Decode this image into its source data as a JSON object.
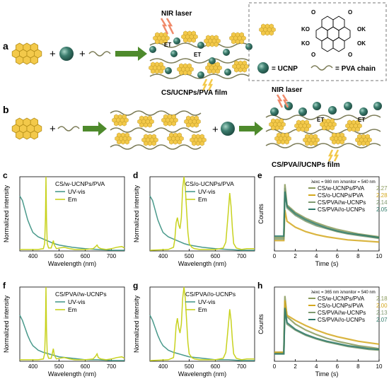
{
  "colors": {
    "uvvis": "#4a9a8c",
    "em": "#c8d21e",
    "s1": "#8a9a5b",
    "s2": "#d4a81e",
    "s3": "#7f9a70",
    "s4": "#2f7a6a",
    "cs": "#f3c94a",
    "csEdge": "#b58f1a",
    "ucnp": "#2e6b5e",
    "arrow": "#4e8a2c",
    "laser": "#f08a6a"
  },
  "schematic": {
    "panel_a": "a",
    "panel_b": "b",
    "nir_laser_a": "NIR laser",
    "nir_laser_b": "NIR laser",
    "et": "ET",
    "film_a": "CS/UCNPs/PVA film",
    "film_b": "CS/PVA//UCNPs film",
    "plus": "+",
    "legend_ucnp": "= UCNP",
    "legend_pva": "= PVA chain",
    "ko": "KO",
    "ok": "OK",
    "o": "O"
  },
  "chart_data": [
    {
      "panel": "c",
      "type": "line",
      "legend_title": "CS/w-UCNPs/PVA",
      "xlabel": "Wavelength (nm)",
      "ylabel": "Normalized intensity",
      "xlim": [
        350,
        750
      ],
      "xticks": [
        400,
        500,
        600,
        700
      ],
      "series": [
        {
          "name": "UV-vis",
          "color_key": "uvvis",
          "x": [
            350,
            360,
            370,
            380,
            390,
            400,
            410,
            420,
            440,
            460,
            480,
            500,
            550,
            600,
            650,
            700,
            750
          ],
          "y": [
            0.74,
            0.68,
            0.55,
            0.42,
            0.33,
            0.25,
            0.22,
            0.19,
            0.16,
            0.13,
            0.1,
            0.08,
            0.05,
            0.03,
            0.02,
            0.01,
            0.01
          ]
        },
        {
          "name": "Em",
          "color_key": "em",
          "x": [
            350,
            420,
            440,
            445,
            448,
            450,
            452,
            455,
            460,
            470,
            475,
            478,
            482,
            490,
            500,
            520,
            540,
            560,
            600,
            630,
            640,
            645,
            650,
            660,
            680,
            700,
            720,
            740,
            750
          ],
          "y": [
            0.02,
            0.02,
            0.03,
            0.1,
            0.45,
            1.0,
            0.45,
            0.1,
            0.04,
            0.04,
            0.1,
            0.14,
            0.08,
            0.03,
            0.04,
            0.05,
            0.03,
            0.02,
            0.02,
            0.03,
            0.06,
            0.08,
            0.05,
            0.03,
            0.02,
            0.03,
            0.05,
            0.06,
            0.04
          ]
        }
      ]
    },
    {
      "panel": "d",
      "type": "line",
      "legend_title": "CS/o-UCNPs/PVA",
      "xlabel": "Wavelength (nm)",
      "ylabel": "Normalized intensity",
      "xlim": [
        350,
        750
      ],
      "xticks": [
        400,
        500,
        600,
        700
      ],
      "series": [
        {
          "name": "UV-vis",
          "color_key": "uvvis",
          "x": [
            350,
            360,
            370,
            380,
            390,
            400,
            410,
            420,
            440,
            460,
            480,
            500,
            550,
            600,
            650,
            700,
            750
          ],
          "y": [
            0.74,
            0.68,
            0.55,
            0.42,
            0.33,
            0.25,
            0.22,
            0.19,
            0.16,
            0.13,
            0.1,
            0.08,
            0.05,
            0.03,
            0.02,
            0.01,
            0.01
          ]
        },
        {
          "name": "Em",
          "color_key": "em",
          "x": [
            350,
            420,
            440,
            445,
            450,
            455,
            460,
            465,
            470,
            475,
            480,
            485,
            490,
            495,
            500,
            510,
            520,
            540,
            560,
            600,
            630,
            640,
            650,
            655,
            660,
            665,
            670,
            680,
            700,
            720,
            750
          ],
          "y": [
            0.01,
            0.02,
            0.05,
            0.15,
            0.38,
            0.45,
            0.35,
            0.3,
            0.45,
            0.85,
            1.0,
            0.85,
            0.55,
            0.25,
            0.1,
            0.05,
            0.03,
            0.02,
            0.02,
            0.02,
            0.04,
            0.12,
            0.55,
            0.78,
            0.6,
            0.3,
            0.1,
            0.04,
            0.02,
            0.03,
            0.03
          ]
        }
      ]
    },
    {
      "panel": "e",
      "type": "line",
      "legend_note": "λexc = 980 nm  λmonitor = 540 nm",
      "xlabel": "Time (s)",
      "ylabel": "Counts",
      "xlim": [
        0,
        10
      ],
      "xticks": [
        0,
        2,
        4,
        6,
        8,
        10
      ],
      "series": [
        {
          "name": "CS/w-UCNPs/PVA",
          "lifetime": "2.27 s",
          "color_key": "s1",
          "x": [
            0,
            0.9,
            1.0,
            1.2,
            2,
            3,
            4,
            5,
            6,
            7,
            8,
            9,
            10
          ],
          "y": [
            0.18,
            0.18,
            0.9,
            0.62,
            0.52,
            0.44,
            0.38,
            0.33,
            0.29,
            0.26,
            0.23,
            0.21,
            0.19
          ]
        },
        {
          "name": "CS/o-UCNPs/PVA",
          "lifetime": "2.28 s",
          "color_key": "s2",
          "x": [
            0,
            0.9,
            1.0,
            1.2,
            2,
            3,
            4,
            5,
            6,
            7,
            8,
            9,
            10
          ],
          "y": [
            0.14,
            0.14,
            0.55,
            0.4,
            0.32,
            0.26,
            0.22,
            0.19,
            0.17,
            0.15,
            0.14,
            0.13,
            0.12
          ]
        },
        {
          "name": "CS/PVA//w-UCNPs",
          "lifetime": "2.14 s",
          "color_key": "s3",
          "x": [
            0,
            0.9,
            1.0,
            1.2,
            2,
            3,
            4,
            5,
            6,
            7,
            8,
            9,
            10
          ],
          "y": [
            0.16,
            0.16,
            0.85,
            0.58,
            0.48,
            0.4,
            0.34,
            0.3,
            0.26,
            0.23,
            0.21,
            0.19,
            0.17
          ]
        },
        {
          "name": "CS/PVA//o-UCNPs",
          "lifetime": "2.05 s",
          "color_key": "s4",
          "x": [
            0,
            0.9,
            1.0,
            1.2,
            2,
            3,
            4,
            5,
            6,
            7,
            8,
            9,
            10
          ],
          "y": [
            0.2,
            0.2,
            0.8,
            0.6,
            0.5,
            0.42,
            0.36,
            0.31,
            0.27,
            0.24,
            0.22,
            0.2,
            0.18
          ]
        }
      ]
    },
    {
      "panel": "f",
      "type": "line",
      "legend_title": "CS/PVA//w-UCNPs",
      "xlabel": "Wavelength (nm)",
      "ylabel": "Normalized intensity",
      "xlim": [
        350,
        750
      ],
      "xticks": [
        400,
        500,
        600,
        700
      ],
      "series": [
        {
          "name": "UV-vis",
          "color_key": "uvvis",
          "x": [
            350,
            360,
            370,
            380,
            390,
            400,
            410,
            420,
            440,
            460,
            480,
            500,
            550,
            600,
            650,
            700,
            750
          ],
          "y": [
            0.62,
            0.55,
            0.45,
            0.35,
            0.27,
            0.21,
            0.18,
            0.15,
            0.12,
            0.1,
            0.08,
            0.06,
            0.04,
            0.02,
            0.02,
            0.01,
            0.01
          ]
        },
        {
          "name": "Em",
          "color_key": "em",
          "x": [
            350,
            420,
            440,
            445,
            448,
            450,
            452,
            455,
            460,
            470,
            475,
            478,
            482,
            490,
            500,
            520,
            540,
            560,
            600,
            630,
            640,
            645,
            650,
            660,
            680,
            700,
            720,
            740,
            750
          ],
          "y": [
            0.02,
            0.02,
            0.03,
            0.1,
            0.45,
            1.0,
            0.45,
            0.1,
            0.04,
            0.04,
            0.12,
            0.17,
            0.08,
            0.03,
            0.04,
            0.05,
            0.03,
            0.02,
            0.02,
            0.03,
            0.07,
            0.1,
            0.05,
            0.03,
            0.02,
            0.03,
            0.05,
            0.06,
            0.04
          ]
        }
      ]
    },
    {
      "panel": "g",
      "type": "line",
      "legend_title": "CS/PVA//o-UCNPs",
      "xlabel": "Wavelength (nm)",
      "ylabel": "Normalized intensity",
      "xlim": [
        350,
        750
      ],
      "xticks": [
        400,
        500,
        600,
        700
      ],
      "series": [
        {
          "name": "UV-vis",
          "color_key": "uvvis",
          "x": [
            350,
            360,
            370,
            380,
            390,
            400,
            410,
            420,
            440,
            460,
            480,
            500,
            550,
            600,
            650,
            700,
            750
          ],
          "y": [
            0.62,
            0.55,
            0.45,
            0.35,
            0.27,
            0.21,
            0.18,
            0.15,
            0.12,
            0.1,
            0.08,
            0.06,
            0.04,
            0.02,
            0.02,
            0.01,
            0.01
          ]
        },
        {
          "name": "Em",
          "color_key": "em",
          "x": [
            350,
            420,
            440,
            445,
            450,
            455,
            460,
            465,
            470,
            475,
            480,
            485,
            490,
            495,
            500,
            510,
            520,
            540,
            560,
            600,
            630,
            640,
            650,
            655,
            660,
            665,
            670,
            680,
            700,
            720,
            750
          ],
          "y": [
            0.01,
            0.02,
            0.05,
            0.2,
            0.48,
            0.58,
            0.45,
            0.38,
            0.5,
            0.85,
            1.0,
            0.85,
            0.55,
            0.25,
            0.1,
            0.05,
            0.03,
            0.02,
            0.02,
            0.02,
            0.04,
            0.12,
            0.5,
            0.7,
            0.55,
            0.28,
            0.1,
            0.04,
            0.02,
            0.03,
            0.03
          ]
        }
      ]
    },
    {
      "panel": "h",
      "type": "line",
      "legend_note": "λexc = 365 nm  λmonitor = 540 nm",
      "xlabel": "Time (s)",
      "ylabel": "Counts",
      "xlim": [
        0,
        10
      ],
      "xticks": [
        0,
        2,
        4,
        6,
        8,
        10
      ],
      "series": [
        {
          "name": "CS/w-UCNPs/PVA",
          "lifetime": "2.18 s",
          "color_key": "s1",
          "x": [
            0,
            0.9,
            1.0,
            1.2,
            2,
            3,
            4,
            5,
            6,
            7,
            8,
            9,
            10
          ],
          "y": [
            0.12,
            0.12,
            0.88,
            0.6,
            0.5,
            0.42,
            0.36,
            0.31,
            0.27,
            0.24,
            0.21,
            0.19,
            0.17
          ]
        },
        {
          "name": "CS/o-UCNPs/PVA",
          "lifetime": "2.00 s",
          "color_key": "s2",
          "x": [
            0,
            0.9,
            1.0,
            1.2,
            2,
            3,
            4,
            5,
            6,
            7,
            8,
            9,
            10
          ],
          "y": [
            0.12,
            0.12,
            0.82,
            0.62,
            0.55,
            0.48,
            0.42,
            0.37,
            0.33,
            0.3,
            0.27,
            0.25,
            0.23
          ]
        },
        {
          "name": "CS/PVA//w-UCNPs",
          "lifetime": "2.13 s",
          "color_key": "s3",
          "x": [
            0,
            0.9,
            1.0,
            1.2,
            2,
            3,
            4,
            5,
            6,
            7,
            8,
            9,
            10
          ],
          "y": [
            0.1,
            0.1,
            0.7,
            0.5,
            0.42,
            0.35,
            0.3,
            0.26,
            0.23,
            0.2,
            0.18,
            0.16,
            0.15
          ]
        },
        {
          "name": "CS/PVA//o-UCNPs",
          "lifetime": "2.07 s",
          "color_key": "s4",
          "x": [
            0,
            0.9,
            1.0,
            1.2,
            2,
            3,
            4,
            5,
            6,
            7,
            8,
            9,
            10
          ],
          "y": [
            0.1,
            0.1,
            0.72,
            0.52,
            0.43,
            0.36,
            0.31,
            0.27,
            0.24,
            0.21,
            0.19,
            0.17,
            0.16
          ]
        }
      ]
    }
  ]
}
